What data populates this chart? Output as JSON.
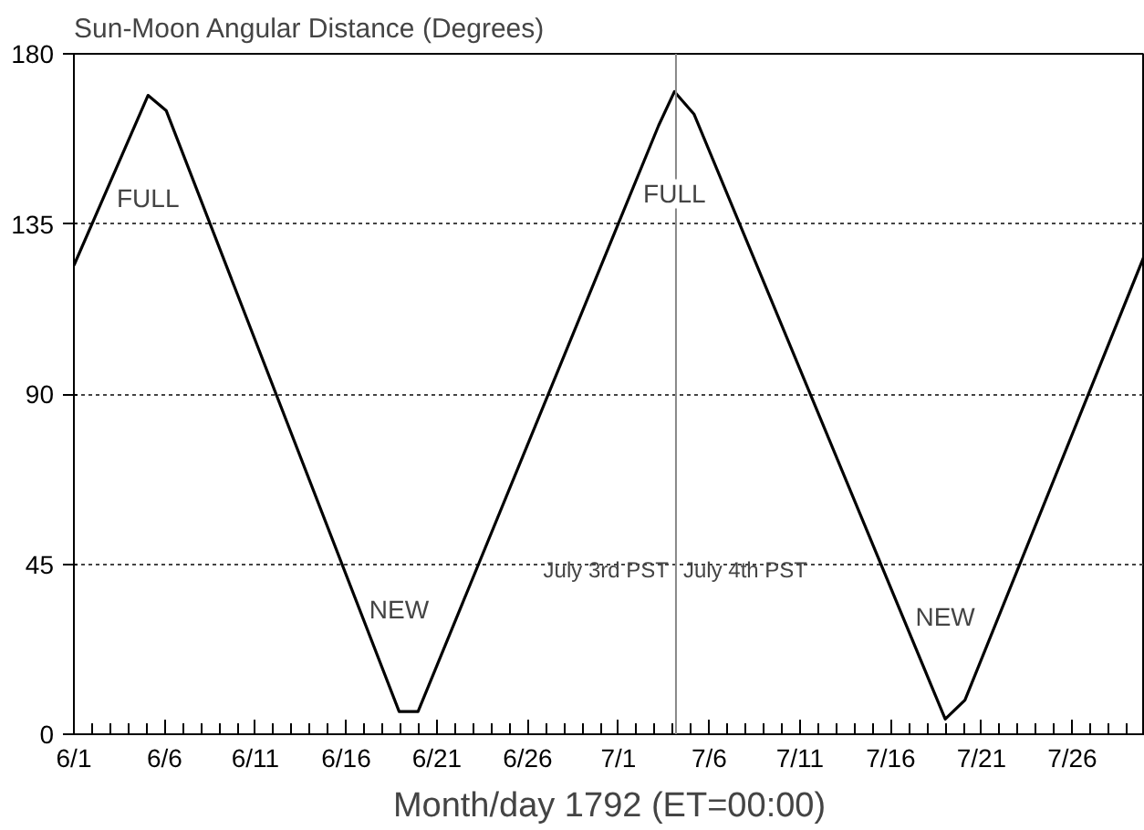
{
  "chart_data": {
    "type": "line",
    "ylabel": "Sun-Moon Angular Distance (Degrees)",
    "xlabel": "Month/day 1792 (ET=00:00)",
    "x": [
      "1792-06-01",
      "1792-06-05T02:00",
      "1792-06-06T02:00",
      "1792-06-18T22:00",
      "1792-06-19T23:00",
      "1792-07-03T05:00",
      "1792-07-04T02:00",
      "1792-07-05T04:00",
      "1792-07-19T00:00",
      "1792-07-20T02:00",
      "1792-07-30"
    ],
    "series": [
      {
        "color": "#000000",
        "values": [
          124,
          169,
          165,
          6,
          6,
          161,
          170,
          164,
          4,
          9,
          127
        ]
      }
    ],
    "xlim": [
      "1792-06-01",
      "1792-07-30"
    ],
    "xticks": [
      {
        "value": "1792-06-01",
        "label": "6/1"
      },
      {
        "value": "1792-06-06",
        "label": "6/6"
      },
      {
        "value": "1792-06-11",
        "label": "6/11"
      },
      {
        "value": "1792-06-16",
        "label": "6/16"
      },
      {
        "value": "1792-06-21",
        "label": "6/21"
      },
      {
        "value": "1792-06-26",
        "label": "6/26"
      },
      {
        "value": "1792-07-01",
        "label": "7/1"
      },
      {
        "value": "1792-07-06",
        "label": "7/6"
      },
      {
        "value": "1792-07-11",
        "label": "7/11"
      },
      {
        "value": "1792-07-16",
        "label": "7/16"
      },
      {
        "value": "1792-07-21",
        "label": "7/21"
      },
      {
        "value": "1792-07-26",
        "label": "7/26"
      }
    ],
    "ylim": [
      0,
      180
    ],
    "yticks": [
      0,
      45,
      90,
      135,
      180
    ],
    "grid": "y",
    "marker": "none",
    "line_style": "solid",
    "ref_lines": [
      {
        "axis": "x",
        "value": "1792-07-04T04:00",
        "label": "July 4th PST",
        "color": "#888888"
      }
    ],
    "annotations": [
      "FULL",
      "NEW",
      "FULL",
      "NEW",
      "July 3rd PST"
    ]
  }
}
